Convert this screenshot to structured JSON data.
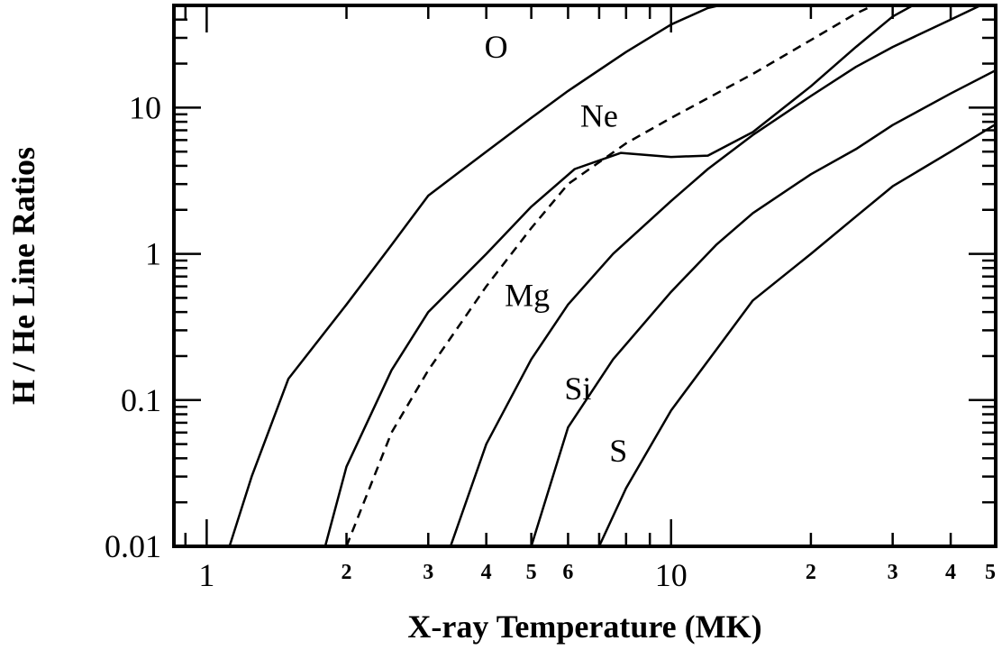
{
  "chart_data": {
    "type": "line",
    "xlabel": "X-ray Temperature  (MK)",
    "ylabel": "H / He Line Ratios",
    "xscale": "log",
    "yscale": "log",
    "xlim": [
      0.85,
      50
    ],
    "ylim": [
      0.01,
      50
    ],
    "grid": false,
    "x_major_ticks": [
      {
        "value": 1,
        "label": "1"
      },
      {
        "value": 10,
        "label": "10"
      }
    ],
    "x_minor_labels": [
      {
        "value": 2,
        "label": "2"
      },
      {
        "value": 3,
        "label": "3"
      },
      {
        "value": 4,
        "label": "4"
      },
      {
        "value": 5,
        "label": "5"
      },
      {
        "value": 6,
        "label": "6"
      },
      {
        "value": 20,
        "label": "2"
      },
      {
        "value": 30,
        "label": "3"
      },
      {
        "value": 40,
        "label": "4"
      },
      {
        "value": 50,
        "label": "5"
      }
    ],
    "y_major_ticks": [
      {
        "value": 0.01,
        "label": "0.01"
      },
      {
        "value": 0.1,
        "label": "0.1"
      },
      {
        "value": 1,
        "label": "1"
      },
      {
        "value": 10,
        "label": "10"
      }
    ],
    "series": [
      {
        "name": "O",
        "label_at": [
          4.2,
          26
        ],
        "dashed": false,
        "x": [
          1.12,
          1.25,
          1.5,
          2.0,
          2.5,
          3.0,
          4.0,
          5.0,
          6.0,
          8.0,
          10.0,
          12.0,
          14.5
        ],
        "y": [
          0.01,
          0.03,
          0.14,
          0.45,
          1.15,
          2.5,
          5.0,
          8.5,
          13.0,
          24.0,
          37.0,
          48.0,
          55.0
        ]
      },
      {
        "name": "Ne",
        "label_at": [
          7.0,
          8.8
        ],
        "dashed": false,
        "x": [
          1.8,
          2.0,
          2.5,
          3.0,
          4.0,
          5.0,
          6.2,
          7.8,
          10.0,
          12.0,
          15.0,
          20.0,
          25.0,
          30.0,
          35.0
        ],
        "y": [
          0.01,
          0.035,
          0.16,
          0.4,
          1.0,
          2.1,
          3.8,
          4.9,
          4.6,
          4.7,
          6.8,
          14.0,
          26.0,
          42.0,
          55.0
        ]
      },
      {
        "name": "",
        "dashed": true,
        "x": [
          2.0,
          2.5,
          3.0,
          4.0,
          5.0,
          6.0,
          8.0,
          10.0,
          15.0,
          20.0,
          25.0,
          28.0
        ],
        "y": [
          0.01,
          0.06,
          0.16,
          0.6,
          1.5,
          3.0,
          5.7,
          8.5,
          17.0,
          29.0,
          44.0,
          52.0
        ]
      },
      {
        "name": "Mg",
        "label_at": [
          4.9,
          0.52
        ],
        "dashed": false,
        "x": [
          3.35,
          4.0,
          5.0,
          6.0,
          7.5,
          10.0,
          12.0,
          15.0,
          20.0,
          25.0,
          30.0,
          40.0,
          50.0
        ],
        "y": [
          0.01,
          0.05,
          0.19,
          0.45,
          1.0,
          2.3,
          3.8,
          6.5,
          12.0,
          19.0,
          26.0,
          40.0,
          56.0
        ]
      },
      {
        "name": "Si",
        "label_at": [
          6.3,
          0.12
        ],
        "dashed": false,
        "x": [
          5.0,
          6.0,
          7.5,
          10.0,
          12.5,
          15.0,
          20.0,
          25.0,
          30.0,
          40.0,
          50.0
        ],
        "y": [
          0.01,
          0.065,
          0.19,
          0.55,
          1.15,
          1.9,
          3.5,
          5.2,
          7.6,
          12.5,
          18.0
        ]
      },
      {
        "name": "S",
        "label_at": [
          7.7,
          0.045
        ],
        "dashed": false,
        "x": [
          7.0,
          8.0,
          10.0,
          12.5,
          15.0,
          20.0,
          25.0,
          30.0,
          40.0,
          50.0
        ],
        "y": [
          0.01,
          0.025,
          0.085,
          0.22,
          0.48,
          1.0,
          1.8,
          2.9,
          5.0,
          7.7
        ]
      }
    ]
  }
}
